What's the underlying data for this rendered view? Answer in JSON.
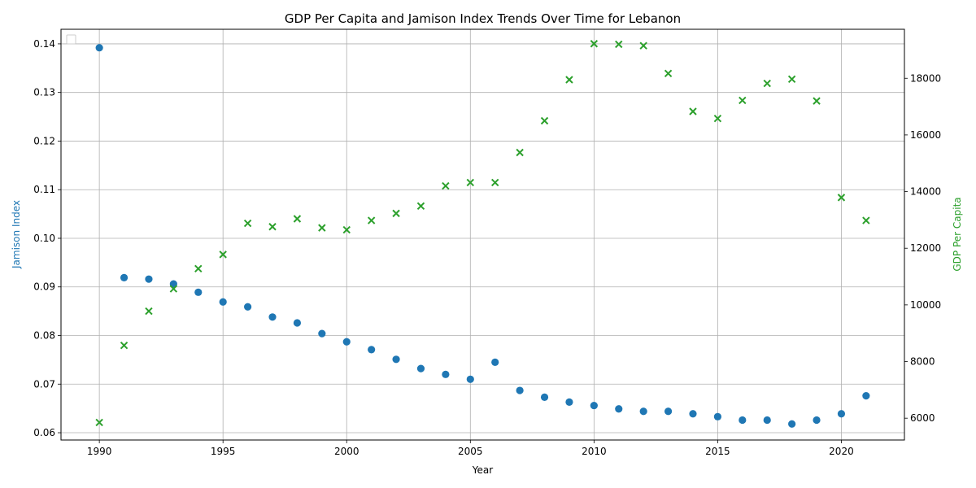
{
  "chart_data": {
    "type": "scatter",
    "title": "GDP Per Capita and Jamison Index Trends Over Time for Lebanon",
    "xlabel": "Year",
    "ylabel_left": "Jamison Index",
    "ylabel_right": "GDP Per Capita",
    "x": [
      1990,
      1991,
      1992,
      1993,
      1994,
      1995,
      1996,
      1997,
      1998,
      1999,
      2000,
      2001,
      2002,
      2003,
      2004,
      2005,
      2006,
      2007,
      2008,
      2009,
      2010,
      2011,
      2012,
      2013,
      2014,
      2015,
      2016,
      2017,
      2018,
      2019,
      2020,
      2021
    ],
    "series": [
      {
        "axis": "left",
        "marker": "circle",
        "color": "#1f77b4",
        "values": [
          0.1392,
          0.0919,
          0.0916,
          0.0906,
          0.0889,
          0.0869,
          0.0859,
          0.0838,
          0.0826,
          0.0804,
          0.0787,
          0.0771,
          0.0751,
          0.0732,
          0.072,
          0.071,
          0.0745,
          0.0687,
          0.0673,
          0.0663,
          0.0656,
          0.0649,
          0.0644,
          0.0644,
          0.0639,
          0.0633,
          0.0626,
          0.0626,
          0.0618,
          0.0626,
          0.0639,
          0.0676
        ]
      },
      {
        "axis": "right",
        "marker": "x",
        "color": "#2ca02c",
        "values": [
          5850,
          8570,
          9780,
          10570,
          11280,
          11780,
          12880,
          12760,
          13040,
          12720,
          12650,
          12980,
          13230,
          13490,
          14200,
          14320,
          14320,
          15380,
          16500,
          17950,
          19220,
          19200,
          19150,
          18170,
          16830,
          16580,
          17220,
          17820,
          17970,
          17200,
          13790,
          12980
        ]
      }
    ],
    "xlim": [
      1988.45,
      2022.55
    ],
    "ylim_left": [
      0.0585,
      0.143
    ],
    "ylim_right": [
      5230,
      19730
    ],
    "xticks": [
      "1990",
      "1995",
      "2000",
      "2005",
      "2010",
      "2015",
      "2020"
    ],
    "yticks_left": [
      "0.06",
      "0.07",
      "0.08",
      "0.09",
      "0.10",
      "0.11",
      "0.12",
      "0.13",
      "0.14"
    ],
    "yticks_right": [
      "6000",
      "8000",
      "10000",
      "12000",
      "14000",
      "16000",
      "18000"
    ],
    "grid": true,
    "legend": "upper-left (empty)"
  }
}
